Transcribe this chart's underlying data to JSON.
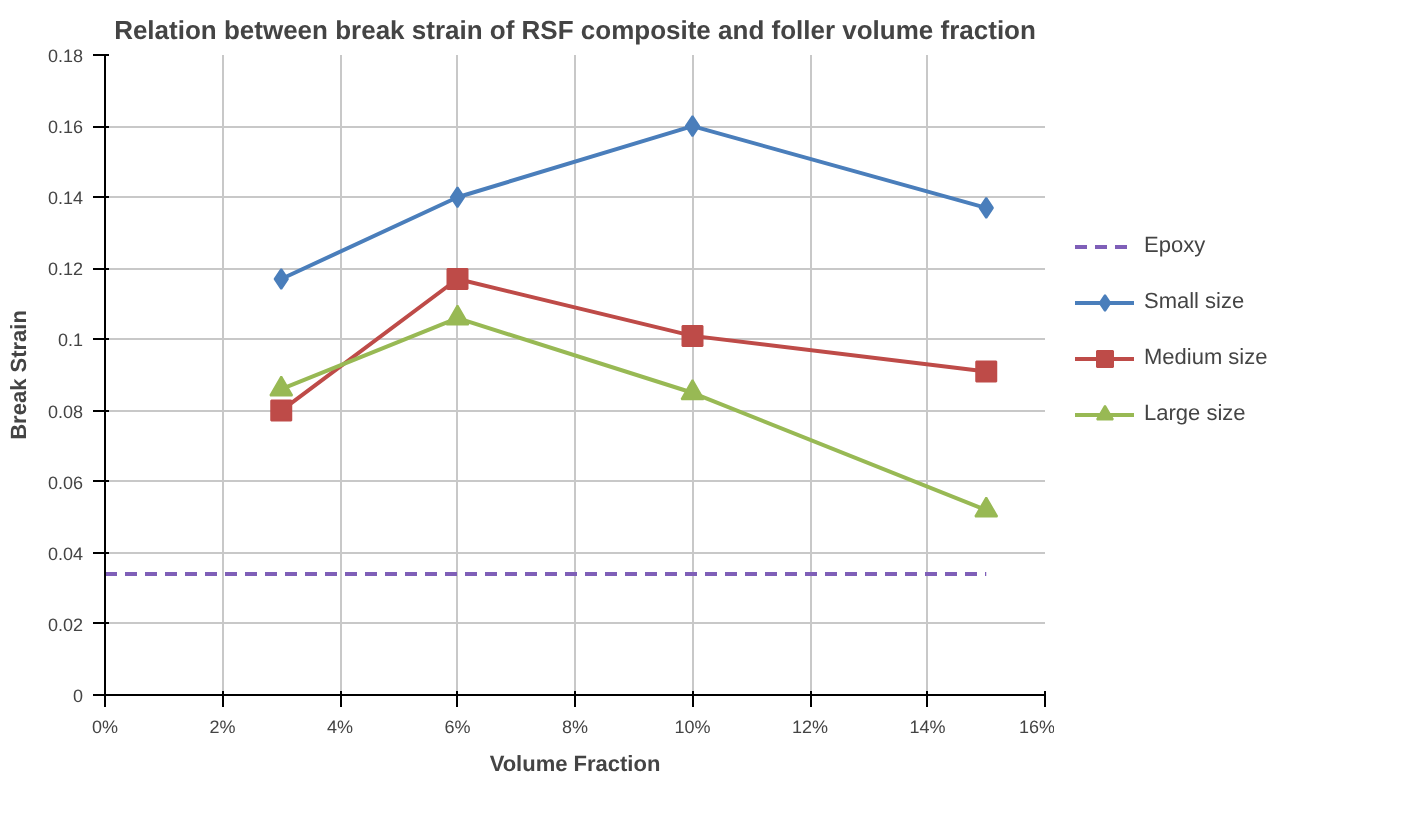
{
  "chart_data": {
    "type": "line",
    "title": "Relation between break strain of RSF composite and foller volume fraction",
    "xlabel": "Volume Fraction",
    "ylabel": "Break Strain",
    "x": [
      3,
      6,
      10,
      15
    ],
    "series": [
      {
        "name": "Epoxy",
        "color": "#7f5fb8",
        "x": [
          0,
          15
        ],
        "values": [
          0.034,
          0.034
        ],
        "line_style": "dashed",
        "marker": "none"
      },
      {
        "name": "Small size",
        "color": "#4a7ebb",
        "values": [
          0.117,
          0.14,
          0.16,
          0.137
        ],
        "marker": "diamond"
      },
      {
        "name": "Medium size",
        "color": "#be4b48",
        "values": [
          0.08,
          0.117,
          0.101,
          0.091
        ],
        "marker": "square"
      },
      {
        "name": "Large size",
        "color": "#98b954",
        "values": [
          0.086,
          0.106,
          0.085,
          0.052
        ],
        "marker": "triangle"
      }
    ],
    "xlim": [
      0,
      16
    ],
    "xticks": [
      {
        "value": 0,
        "label": "0%"
      },
      {
        "value": 2,
        "label": "2%"
      },
      {
        "value": 4,
        "label": "4%"
      },
      {
        "value": 6,
        "label": "6%"
      },
      {
        "value": 8,
        "label": "8%"
      },
      {
        "value": 10,
        "label": "10%"
      },
      {
        "value": 12,
        "label": "12%"
      },
      {
        "value": 14,
        "label": "14%"
      },
      {
        "value": 16,
        "label": "16%"
      }
    ],
    "ylim": [
      0,
      0.18
    ],
    "yticks": [
      0,
      0.02,
      0.04,
      0.06,
      0.08,
      {
        "value": 0.1,
        "label": "0.1"
      },
      0.12,
      0.14,
      0.16,
      0.18
    ],
    "grid": true,
    "legend": "right",
    "line_style": "solid"
  }
}
